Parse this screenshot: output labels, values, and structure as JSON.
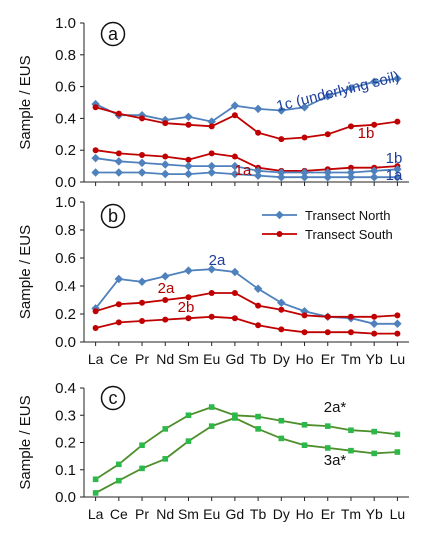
{
  "categories": [
    "La",
    "Ce",
    "Pr",
    "Nd",
    "Sm",
    "Eu",
    "Gd",
    "Tb",
    "Dy",
    "Ho",
    "Er",
    "Tm",
    "Yb",
    "Lu"
  ],
  "colors": {
    "north": "#4f81bd",
    "south": "#c00000",
    "green_line": "#4e8f2c",
    "green_marker": "#2db84a",
    "north_label": "#1f3e9c",
    "south_label": "#b00000"
  },
  "chart_data": [
    {
      "id": "a",
      "type": "line",
      "panel_label": "a",
      "ylabel": "Sample / EUS",
      "ylim": [
        0,
        1.0
      ],
      "yticks": [
        "0.0",
        "0.2",
        "0.4",
        "0.6",
        "0.8",
        "1.0"
      ],
      "show_xticks": false,
      "series": [
        {
          "name": "1c (underlying soil)",
          "group": "north",
          "values": [
            0.49,
            0.42,
            0.42,
            0.39,
            0.41,
            0.38,
            0.48,
            0.46,
            0.45,
            0.47,
            0.54,
            0.59,
            0.63,
            0.65
          ]
        },
        {
          "name": "1b",
          "group": "south",
          "values": [
            0.47,
            0.43,
            0.4,
            0.37,
            0.36,
            0.35,
            0.42,
            0.31,
            0.27,
            0.28,
            0.3,
            0.35,
            0.36,
            0.38
          ]
        },
        {
          "name": "1a",
          "group": "south",
          "values": [
            0.2,
            0.18,
            0.17,
            0.16,
            0.14,
            0.18,
            0.16,
            0.09,
            0.07,
            0.07,
            0.08,
            0.09,
            0.09,
            0.1
          ]
        },
        {
          "name": "1b",
          "group": "north",
          "values": [
            0.15,
            0.13,
            0.12,
            0.11,
            0.1,
            0.1,
            0.1,
            0.07,
            0.06,
            0.06,
            0.06,
            0.06,
            0.07,
            0.08
          ]
        },
        {
          "name": "1a",
          "group": "north",
          "values": [
            0.06,
            0.06,
            0.06,
            0.05,
            0.05,
            0.06,
            0.05,
            0.04,
            0.03,
            0.03,
            0.03,
            0.03,
            0.03,
            0.03
          ]
        }
      ],
      "annotations": [
        {
          "text": "1c (underlying soil)",
          "group": "north"
        },
        {
          "text": "1b",
          "group": "south"
        },
        {
          "text": "1a",
          "group": "south"
        },
        {
          "text": "1b",
          "group": "north"
        },
        {
          "text": "1a",
          "group": "north"
        }
      ]
    },
    {
      "id": "b",
      "type": "line",
      "panel_label": "b",
      "ylabel": "Sample / EUS",
      "ylim": [
        0,
        1.0
      ],
      "yticks": [
        "0.0",
        "0.2",
        "0.4",
        "0.6",
        "0.8",
        "1.0"
      ],
      "show_xticks": true,
      "legend": [
        {
          "label": "Transect North",
          "group": "north"
        },
        {
          "label": "Transect South",
          "group": "south"
        }
      ],
      "series": [
        {
          "name": "2a",
          "group": "north",
          "values": [
            0.24,
            0.45,
            0.43,
            0.47,
            0.51,
            0.52,
            0.5,
            0.38,
            0.28,
            0.22,
            0.18,
            0.17,
            0.13,
            0.13
          ]
        },
        {
          "name": "2a",
          "group": "south",
          "values": [
            0.22,
            0.27,
            0.28,
            0.3,
            0.32,
            0.35,
            0.35,
            0.26,
            0.23,
            0.19,
            0.18,
            0.18,
            0.18,
            0.19
          ]
        },
        {
          "name": "2b",
          "group": "south",
          "values": [
            0.1,
            0.14,
            0.15,
            0.16,
            0.17,
            0.18,
            0.17,
            0.12,
            0.09,
            0.07,
            0.07,
            0.07,
            0.06,
            0.06
          ]
        }
      ],
      "annotations": [
        {
          "text": "2a",
          "group": "north"
        },
        {
          "text": "2a",
          "group": "south"
        },
        {
          "text": "2b",
          "group": "south"
        }
      ]
    },
    {
      "id": "c",
      "type": "line",
      "panel_label": "c",
      "ylabel": "Sample / EUS",
      "ylim": [
        0,
        0.4
      ],
      "yticks": [
        "0.0",
        "0.1",
        "0.2",
        "0.3",
        "0.4"
      ],
      "show_xticks": true,
      "series": [
        {
          "name": "2a*",
          "group": "green",
          "values": [
            0.065,
            0.12,
            0.19,
            0.25,
            0.3,
            0.33,
            0.3,
            0.295,
            0.28,
            0.265,
            0.26,
            0.245,
            0.24,
            0.23
          ]
        },
        {
          "name": "3a*",
          "group": "green",
          "values": [
            0.015,
            0.06,
            0.105,
            0.14,
            0.205,
            0.26,
            0.29,
            0.25,
            0.215,
            0.19,
            0.18,
            0.17,
            0.16,
            0.165
          ]
        }
      ],
      "annotations": [
        {
          "text": "2a*",
          "group": "dark"
        },
        {
          "text": "3a*",
          "group": "dark"
        }
      ]
    }
  ]
}
